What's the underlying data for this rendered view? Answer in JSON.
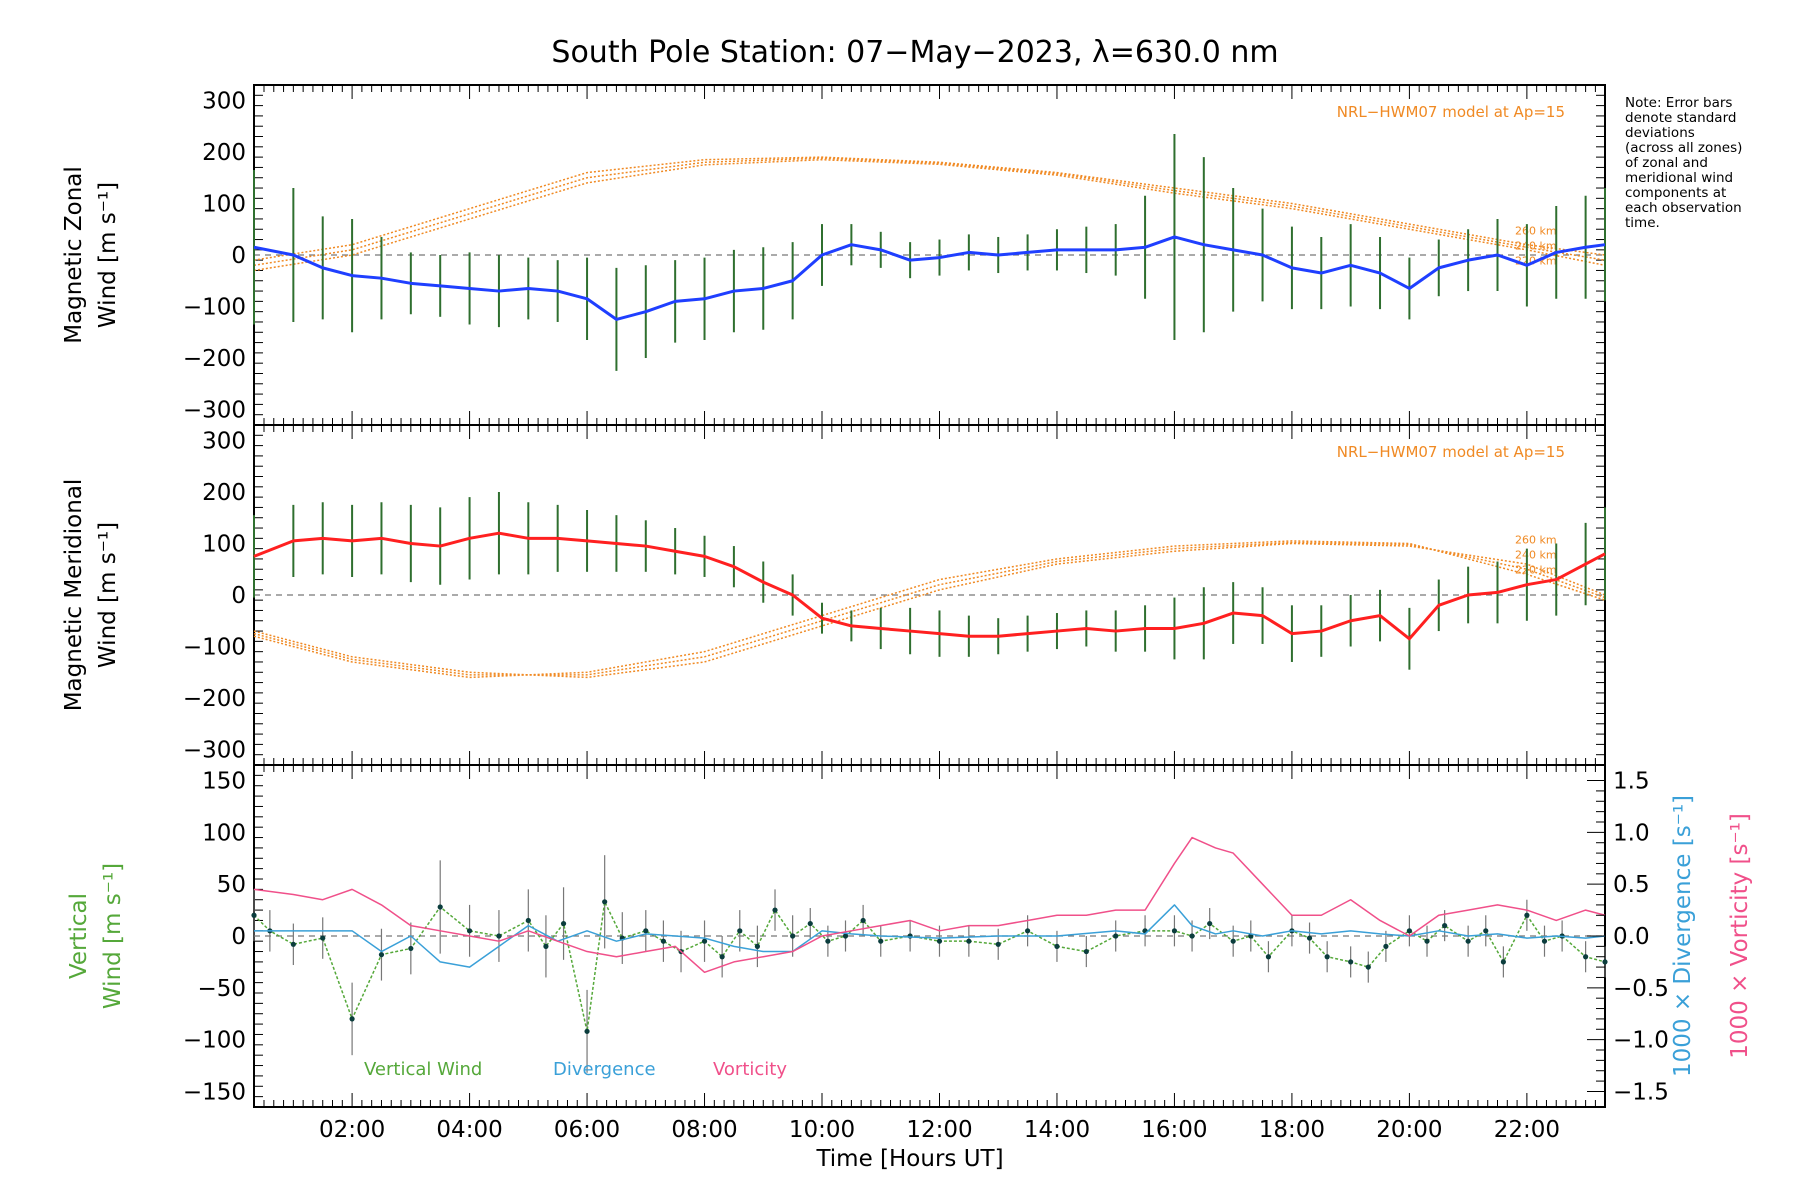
{
  "figure": {
    "title": "South Pole Station: 07−May−2023, λ=630.0 nm",
    "xlabel": "Time [Hours UT]",
    "note_lines": [
      "Note: Error bars",
      "denote standard",
      "deviations",
      "(across all zones)",
      "of zonal and",
      "meridional wind",
      "components at",
      "each observation",
      "time."
    ],
    "model_label": "NRL−HWM07 model at Ap=15",
    "altitude_labels": [
      "260 km",
      "240 km",
      "220 km"
    ]
  },
  "colors": {
    "zonal": "#1f3fff",
    "meridional": "#ff2020",
    "model": "#f08a24",
    "vertical": "#55a83a",
    "divergence": "#3aa0d8",
    "vorticity": "#f0508a",
    "errorbar": "#2f6f2f"
  },
  "chart_data": [
    {
      "type": "line",
      "name": "zonal",
      "ylabel_lines": [
        "Magnetic Zonal",
        "Wind [m s⁻¹]"
      ],
      "xlim": [
        0.33,
        23.33
      ],
      "ylim": [
        -330,
        330
      ],
      "yticks": [
        300,
        200,
        100,
        0,
        -100,
        -200,
        -300
      ],
      "xticks": [
        2,
        4,
        6,
        8,
        10,
        12,
        14,
        16,
        18,
        20,
        22
      ],
      "xtick_labels": [
        "02:00",
        "04:00",
        "06:00",
        "08:00",
        "10:00",
        "12:00",
        "14:00",
        "16:00",
        "18:00",
        "20:00",
        "22:00"
      ],
      "series": [
        {
          "name": "Zonal wind",
          "x": [
            0.33,
            1.0,
            1.5,
            2.0,
            2.5,
            3.0,
            3.5,
            4.0,
            4.5,
            5.0,
            5.5,
            6.0,
            6.5,
            7.0,
            7.5,
            8.0,
            8.5,
            9.0,
            9.5,
            10.0,
            10.5,
            11.0,
            11.5,
            12.0,
            12.5,
            13.0,
            13.5,
            14.0,
            14.5,
            15.0,
            15.5,
            16.0,
            16.5,
            17.0,
            17.5,
            18.0,
            18.5,
            19.0,
            19.5,
            20.0,
            20.5,
            21.0,
            21.5,
            22.0,
            22.5,
            23.0,
            23.33
          ],
          "values": [
            15,
            0,
            -25,
            -40,
            -45,
            -55,
            -60,
            -65,
            -70,
            -65,
            -70,
            -85,
            -125,
            -110,
            -90,
            -85,
            -70,
            -65,
            -50,
            0,
            20,
            10,
            -10,
            -5,
            5,
            0,
            5,
            10,
            10,
            10,
            15,
            35,
            20,
            10,
            0,
            -25,
            -35,
            -20,
            -35,
            -65,
            -25,
            -10,
            0,
            -20,
            5,
            15,
            20
          ],
          "error": [
            150,
            130,
            100,
            110,
            80,
            60,
            60,
            70,
            70,
            60,
            60,
            80,
            100,
            90,
            80,
            80,
            80,
            80,
            75,
            60,
            40,
            35,
            35,
            35,
            35,
            35,
            35,
            40,
            45,
            50,
            100,
            200,
            170,
            120,
            90,
            80,
            70,
            80,
            70,
            60,
            55,
            60,
            70,
            80,
            90,
            100,
            110
          ]
        }
      ],
      "model": {
        "label": "NRL−HWM07 model at Ap=15",
        "x": [
          0,
          2,
          4,
          6,
          8,
          10,
          12,
          14,
          16,
          18,
          20,
          22,
          23.33
        ],
        "alt_260": [
          -10,
          20,
          90,
          160,
          185,
          190,
          180,
          160,
          130,
          100,
          60,
          20,
          0
        ],
        "alt_240": [
          -20,
          10,
          80,
          150,
          180,
          188,
          178,
          158,
          125,
          95,
          55,
          15,
          -10
        ],
        "alt_220": [
          -30,
          0,
          70,
          140,
          175,
          185,
          176,
          155,
          120,
          90,
          50,
          10,
          -20
        ]
      }
    },
    {
      "type": "line",
      "name": "meridional",
      "ylabel_lines": [
        "Magnetic Meridional",
        "Wind [m s⁻¹]"
      ],
      "xlim": [
        0.33,
        23.33
      ],
      "ylim": [
        -330,
        330
      ],
      "yticks": [
        300,
        200,
        100,
        0,
        -100,
        -200,
        -300
      ],
      "series": [
        {
          "name": "Meridional wind",
          "x": [
            0.33,
            1.0,
            1.5,
            2.0,
            2.5,
            3.0,
            3.5,
            4.0,
            4.5,
            5.0,
            5.5,
            6.0,
            6.5,
            7.0,
            7.5,
            8.0,
            8.5,
            9.0,
            9.5,
            10.0,
            10.5,
            11.0,
            11.5,
            12.0,
            12.5,
            13.0,
            13.5,
            14.0,
            14.5,
            15.0,
            15.5,
            16.0,
            16.5,
            17.0,
            17.5,
            18.0,
            18.5,
            19.0,
            19.5,
            20.0,
            20.5,
            21.0,
            21.5,
            22.0,
            22.5,
            23.0,
            23.33
          ],
          "values": [
            75,
            105,
            110,
            105,
            110,
            100,
            95,
            110,
            120,
            110,
            110,
            105,
            100,
            95,
            85,
            75,
            55,
            25,
            0,
            -45,
            -60,
            -65,
            -70,
            -75,
            -80,
            -80,
            -75,
            -70,
            -65,
            -70,
            -65,
            -65,
            -55,
            -35,
            -40,
            -75,
            -70,
            -50,
            -40,
            -85,
            -20,
            0,
            5,
            20,
            30,
            60,
            80
          ],
          "error": [
            80,
            70,
            70,
            70,
            70,
            75,
            75,
            80,
            80,
            70,
            65,
            60,
            55,
            50,
            45,
            40,
            40,
            40,
            40,
            30,
            30,
            40,
            45,
            45,
            40,
            35,
            35,
            35,
            35,
            40,
            45,
            60,
            70,
            60,
            55,
            55,
            50,
            50,
            50,
            60,
            50,
            55,
            60,
            70,
            70,
            80,
            90
          ]
        }
      ],
      "model": {
        "label": "NRL−HWM07 model at Ap=15",
        "x": [
          0,
          2,
          4,
          6,
          8,
          10,
          12,
          14,
          16,
          18,
          20,
          22,
          23.33
        ],
        "alt_260": [
          -70,
          -120,
          -150,
          -160,
          -130,
          -60,
          10,
          60,
          85,
          100,
          95,
          60,
          0
        ],
        "alt_240": [
          -75,
          -125,
          -155,
          -155,
          -120,
          -50,
          20,
          65,
          90,
          102,
          98,
          50,
          -5
        ],
        "alt_220": [
          -80,
          -130,
          -160,
          -150,
          -110,
          -40,
          30,
          70,
          95,
          105,
          100,
          40,
          -10
        ]
      }
    },
    {
      "type": "line",
      "name": "vertical",
      "ylabel_lines": [
        "Vertical",
        "Wind [m s⁻¹]"
      ],
      "right_ylabels": [
        "1000 × Divergence [s⁻¹]",
        "1000 × Vorticity [s⁻¹]"
      ],
      "xlim": [
        0.33,
        23.33
      ],
      "ylim": [
        -165,
        165
      ],
      "yticks": [
        150,
        100,
        50,
        0,
        -50,
        -100,
        -150
      ],
      "y2lim": [
        -1.65,
        1.65
      ],
      "y2ticks": [
        1.5,
        1.0,
        0.5,
        0.0,
        -0.5,
        -1.0,
        -1.5
      ],
      "y2tick_labels": [
        "1.5",
        "1.0",
        "0.5",
        "0.0",
        "−0.5",
        "−1.0",
        "−1.5"
      ],
      "legend": [
        "Vertical Wind",
        "Divergence",
        "Vorticity"
      ],
      "series": [
        {
          "name": "Vertical Wind",
          "axis": "left",
          "x": [
            0.33,
            0.6,
            1.0,
            1.5,
            2.0,
            2.5,
            3.0,
            3.5,
            4.0,
            4.5,
            5.0,
            5.3,
            5.6,
            6.0,
            6.3,
            6.6,
            7.0,
            7.3,
            7.6,
            8.0,
            8.3,
            8.6,
            8.9,
            9.2,
            9.5,
            9.8,
            10.1,
            10.4,
            10.7,
            11.0,
            11.5,
            12.0,
            12.5,
            13.0,
            13.5,
            14.0,
            14.5,
            15.0,
            15.5,
            16.0,
            16.3,
            16.6,
            17.0,
            17.3,
            17.6,
            18.0,
            18.3,
            18.6,
            19.0,
            19.3,
            19.6,
            20.0,
            20.3,
            20.6,
            21.0,
            21.3,
            21.6,
            22.0,
            22.3,
            22.6,
            23.0,
            23.33
          ],
          "values": [
            20,
            5,
            -8,
            -2,
            -80,
            -18,
            -12,
            28,
            5,
            0,
            15,
            -10,
            12,
            -92,
            33,
            -2,
            5,
            -5,
            -15,
            -5,
            -20,
            5,
            -10,
            25,
            0,
            12,
            -5,
            0,
            15,
            -5,
            0,
            -5,
            -5,
            -8,
            5,
            -10,
            -15,
            0,
            5,
            5,
            0,
            12,
            -5,
            0,
            -20,
            5,
            -2,
            -20,
            -25,
            -30,
            -10,
            5,
            -5,
            10,
            -5,
            5,
            -25,
            20,
            -5,
            0,
            -20,
            -25
          ],
          "error": [
            25,
            20,
            20,
            20,
            35,
            25,
            25,
            45,
            25,
            25,
            30,
            30,
            35,
            40,
            45,
            25,
            20,
            20,
            20,
            20,
            20,
            20,
            20,
            20,
            20,
            15,
            15,
            15,
            15,
            15,
            15,
            15,
            15,
            15,
            15,
            15,
            15,
            15,
            15,
            15,
            15,
            15,
            15,
            15,
            15,
            15,
            15,
            15,
            15,
            15,
            15,
            15,
            15,
            15,
            15,
            15,
            15,
            15,
            15,
            15,
            15,
            15
          ]
        },
        {
          "name": "Divergence",
          "axis": "right",
          "x": [
            0.33,
            1.0,
            2.0,
            2.5,
            3.0,
            3.5,
            4.0,
            4.5,
            5.0,
            5.5,
            6.0,
            6.5,
            7.0,
            7.5,
            8.0,
            8.5,
            9.0,
            9.5,
            10.0,
            10.5,
            11.0,
            12.0,
            13.0,
            14.0,
            15.0,
            15.5,
            16.0,
            16.3,
            16.7,
            17.0,
            17.5,
            18.0,
            18.5,
            19.0,
            19.5,
            20.0,
            20.5,
            21.0,
            21.5,
            22.0,
            22.5,
            23.0,
            23.33
          ],
          "values": [
            0.05,
            0.05,
            0.05,
            -0.15,
            0.0,
            -0.25,
            -0.3,
            -0.1,
            0.1,
            -0.05,
            0.05,
            -0.05,
            0.02,
            0.0,
            -0.02,
            -0.1,
            -0.15,
            -0.15,
            0.05,
            0.02,
            0.0,
            -0.02,
            0.0,
            0.0,
            0.05,
            0.02,
            0.3,
            0.1,
            0.02,
            0.05,
            0.0,
            0.05,
            0.02,
            0.05,
            0.02,
            0.0,
            0.05,
            0.0,
            0.02,
            -0.02,
            0.0,
            -0.02,
            0.0
          ]
        },
        {
          "name": "Vorticity",
          "axis": "right",
          "x": [
            0.33,
            1.0,
            1.5,
            2.0,
            2.5,
            3.0,
            3.5,
            4.0,
            4.5,
            5.0,
            5.5,
            6.0,
            6.5,
            7.0,
            7.5,
            8.0,
            8.5,
            9.0,
            9.5,
            10.0,
            10.5,
            11.0,
            11.5,
            12.0,
            12.5,
            13.0,
            13.5,
            14.0,
            14.5,
            15.0,
            15.5,
            16.0,
            16.3,
            16.7,
            17.0,
            17.5,
            18.0,
            18.5,
            19.0,
            19.5,
            20.0,
            20.5,
            21.0,
            21.5,
            22.0,
            22.5,
            23.0,
            23.33
          ],
          "values": [
            0.45,
            0.4,
            0.35,
            0.45,
            0.3,
            0.1,
            0.05,
            0.0,
            -0.05,
            0.05,
            -0.05,
            -0.15,
            -0.2,
            -0.15,
            -0.1,
            -0.35,
            -0.25,
            -0.2,
            -0.15,
            0.0,
            0.05,
            0.1,
            0.15,
            0.05,
            0.1,
            0.1,
            0.15,
            0.2,
            0.2,
            0.25,
            0.25,
            0.7,
            0.95,
            0.85,
            0.8,
            0.5,
            0.2,
            0.2,
            0.35,
            0.15,
            0.0,
            0.2,
            0.25,
            0.3,
            0.25,
            0.15,
            0.25,
            0.2
          ]
        }
      ]
    }
  ]
}
